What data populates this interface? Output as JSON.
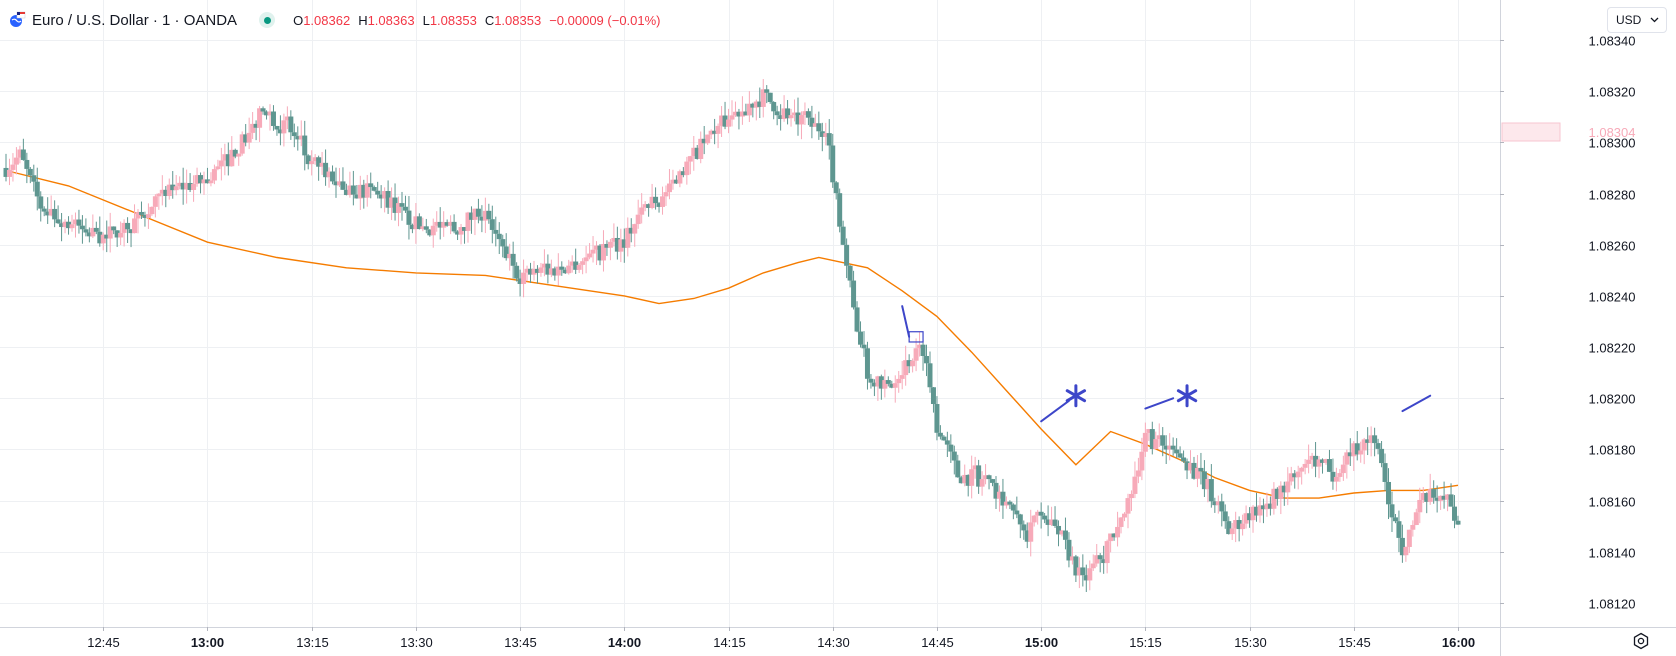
{
  "header": {
    "symbol_title": "Euro / U.S. Dollar · 1 · OANDA",
    "ohlc": [
      {
        "key": "O",
        "value": "1.08362"
      },
      {
        "key": "H",
        "value": "1.08363"
      },
      {
        "key": "L",
        "value": "1.08353"
      },
      {
        "key": "C",
        "value": "1.08353"
      }
    ],
    "change": "−0.00009 (−0.01%)",
    "icons": [
      "globe-flag-icon",
      "market-open-dot-icon"
    ]
  },
  "currency": {
    "label": "USD",
    "icon": "chevron-down-icon"
  },
  "settings": {
    "icon": "gear-icon"
  },
  "colors": {
    "up": "#f7aab9",
    "down": "#5e9690",
    "ma": "#f57c00",
    "drawing": "#3d46c9",
    "grid": "#eef0f3",
    "axis_text": "#131722",
    "price_label_bg": "#fde8ec",
    "price_label_text": "#f7aab9"
  },
  "chart_data": {
    "type": "candlestick",
    "x_axis": {
      "range": [
        "12:31",
        "16:00"
      ],
      "ticks": [
        {
          "label": "12:45",
          "time": "12:45",
          "bold": false
        },
        {
          "label": "13:00",
          "time": "13:00",
          "bold": true
        },
        {
          "label": "13:15",
          "time": "13:15",
          "bold": false
        },
        {
          "label": "13:30",
          "time": "13:30",
          "bold": false
        },
        {
          "label": "13:45",
          "time": "13:45",
          "bold": false
        },
        {
          "label": "14:00",
          "time": "14:00",
          "bold": true
        },
        {
          "label": "14:15",
          "time": "14:15",
          "bold": false
        },
        {
          "label": "14:30",
          "time": "14:30",
          "bold": false
        },
        {
          "label": "14:45",
          "time": "14:45",
          "bold": false
        },
        {
          "label": "15:00",
          "time": "15:00",
          "bold": true
        },
        {
          "label": "15:15",
          "time": "15:15",
          "bold": false
        },
        {
          "label": "15:30",
          "time": "15:30",
          "bold": false
        },
        {
          "label": "15:45",
          "time": "15:45",
          "bold": false
        },
        {
          "label": "16:00",
          "time": "16:00",
          "bold": true
        }
      ]
    },
    "y_axis": {
      "range": [
        1.0811,
        1.08347
      ],
      "ticks": [
        "1.08340",
        "1.08320",
        "1.08300",
        "1.08280",
        "1.08260",
        "1.08240",
        "1.08220",
        "1.08200",
        "1.08180",
        "1.08160",
        "1.08140",
        "1.08120"
      ]
    },
    "price_label": "1.08304",
    "grid": true,
    "price_anchors": [
      [
        "12:31",
        1.0829
      ],
      [
        "12:33",
        1.08295
      ],
      [
        "12:36",
        1.08275
      ],
      [
        "12:40",
        1.08268
      ],
      [
        "12:45",
        1.08263
      ],
      [
        "12:50",
        1.0827
      ],
      [
        "12:55",
        1.08282
      ],
      [
        "13:00",
        1.08285
      ],
      [
        "13:05",
        1.083
      ],
      [
        "13:08",
        1.08312
      ],
      [
        "13:12",
        1.08305
      ],
      [
        "13:15",
        1.0829
      ],
      [
        "13:20",
        1.08282
      ],
      [
        "13:25",
        1.0828
      ],
      [
        "13:30",
        1.08268
      ],
      [
        "13:35",
        1.08265
      ],
      [
        "13:40",
        1.08275
      ],
      [
        "13:42",
        1.0826
      ],
      [
        "13:45",
        1.08248
      ],
      [
        "13:50",
        1.0825
      ],
      [
        "13:55",
        1.08255
      ],
      [
        "14:00",
        1.08262
      ],
      [
        "14:03",
        1.08275
      ],
      [
        "14:07",
        1.08282
      ],
      [
        "14:10",
        1.08295
      ],
      [
        "14:15",
        1.0831
      ],
      [
        "14:20",
        1.08318
      ],
      [
        "14:25",
        1.08308
      ],
      [
        "14:29",
        1.08305
      ],
      [
        "14:31",
        1.0827
      ],
      [
        "14:33",
        1.08235
      ],
      [
        "14:35",
        1.0821
      ],
      [
        "14:38",
        1.08205
      ],
      [
        "14:41",
        1.08215
      ],
      [
        "14:43",
        1.0822
      ],
      [
        "14:45",
        1.0819
      ],
      [
        "14:48",
        1.0817
      ],
      [
        "14:52",
        1.08168
      ],
      [
        "14:55",
        1.0816
      ],
      [
        "14:58",
        1.08145
      ],
      [
        "15:00",
        1.08158
      ],
      [
        "15:03",
        1.08145
      ],
      [
        "15:06",
        1.08128
      ],
      [
        "15:09",
        1.0814
      ],
      [
        "15:12",
        1.08155
      ],
      [
        "15:15",
        1.08185
      ],
      [
        "15:18",
        1.0818
      ],
      [
        "15:21",
        1.08175
      ],
      [
        "15:24",
        1.08165
      ],
      [
        "15:27",
        1.08148
      ],
      [
        "15:30",
        1.08155
      ],
      [
        "15:33",
        1.0816
      ],
      [
        "15:36",
        1.08168
      ],
      [
        "15:39",
        1.08175
      ],
      [
        "15:42",
        1.0817
      ],
      [
        "15:45",
        1.0818
      ],
      [
        "15:48",
        1.08185
      ],
      [
        "15:50",
        1.0816
      ],
      [
        "15:52",
        1.08142
      ],
      [
        "15:55",
        1.0816
      ],
      [
        "15:58",
        1.08163
      ],
      [
        "16:00",
        1.0815
      ]
    ],
    "moving_average": [
      [
        "12:31",
        1.08289
      ],
      [
        "12:40",
        1.08283
      ],
      [
        "12:50",
        1.08272
      ],
      [
        "13:00",
        1.08261
      ],
      [
        "13:10",
        1.08255
      ],
      [
        "13:20",
        1.08251
      ],
      [
        "13:30",
        1.08249
      ],
      [
        "13:40",
        1.08248
      ],
      [
        "13:50",
        1.08244
      ],
      [
        "14:00",
        1.0824
      ],
      [
        "14:05",
        1.08237
      ],
      [
        "14:10",
        1.08239
      ],
      [
        "14:15",
        1.08243
      ],
      [
        "14:20",
        1.08249
      ],
      [
        "14:25",
        1.08253
      ],
      [
        "14:28",
        1.08255
      ],
      [
        "14:35",
        1.08251
      ],
      [
        "14:40",
        1.08242
      ],
      [
        "14:45",
        1.08232
      ],
      [
        "14:50",
        1.08218
      ],
      [
        "14:55",
        1.08203
      ],
      [
        "15:00",
        1.08188
      ],
      [
        "15:05",
        1.08174
      ],
      [
        "15:10",
        1.08187
      ],
      [
        "15:15",
        1.08182
      ],
      [
        "15:20",
        1.08176
      ],
      [
        "15:25",
        1.08169
      ],
      [
        "15:30",
        1.08164
      ],
      [
        "15:35",
        1.08161
      ],
      [
        "15:40",
        1.08161
      ],
      [
        "15:45",
        1.08163
      ],
      [
        "15:50",
        1.08164
      ],
      [
        "15:55",
        1.08164
      ],
      [
        "16:00",
        1.08166
      ]
    ],
    "drawings": [
      {
        "kind": "line",
        "from": [
          "14:40",
          1.08236
        ],
        "to": [
          "14:41",
          1.08224
        ]
      },
      {
        "kind": "box",
        "from": [
          "14:41",
          1.08222
        ],
        "to": [
          "14:43",
          1.08226
        ]
      },
      {
        "kind": "line",
        "from": [
          "15:00",
          1.08191
        ],
        "to": [
          "15:04",
          1.08199
        ]
      },
      {
        "kind": "asterisk",
        "at": [
          "15:05",
          1.08201
        ]
      },
      {
        "kind": "line",
        "from": [
          "15:15",
          1.08196
        ],
        "to": [
          "15:19",
          1.082
        ]
      },
      {
        "kind": "asterisk",
        "at": [
          "15:21",
          1.08201
        ]
      },
      {
        "kind": "line",
        "from": [
          "15:52",
          1.08195
        ],
        "to": [
          "15:56",
          1.08201
        ]
      }
    ]
  }
}
